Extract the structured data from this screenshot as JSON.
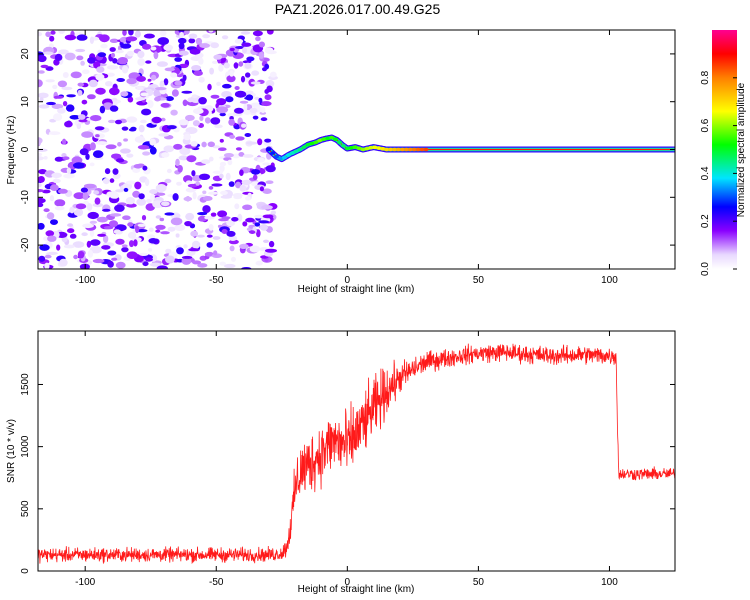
{
  "title": "PAZ1.2026.017.00.49.G25",
  "colors": {
    "snr_line": "#ff1a1a",
    "frame": "#000000",
    "background": "#ffffff"
  },
  "chart_data": [
    {
      "type": "heatmap",
      "name": "spectrogram",
      "xlabel": "Height of straight line (km)",
      "ylabel": "Frequency (Hz)",
      "xlim": [
        -118,
        125
      ],
      "ylim": [
        -25,
        25
      ],
      "x_ticks": [
        -100,
        -50,
        0,
        50,
        100
      ],
      "y_ticks": [
        -20,
        -10,
        0,
        10,
        20
      ],
      "noise_region_x": [
        -118,
        -28
      ],
      "signal_track": {
        "x": [
          -30,
          -27,
          -25,
          -22,
          -18,
          -15,
          -12,
          -10,
          -8,
          -6,
          -4,
          -2,
          0,
          3,
          6,
          10,
          15,
          20,
          25,
          30,
          40,
          50,
          60,
          70,
          80,
          90,
          100,
          105,
          110,
          115,
          120,
          125
        ],
        "frequency": [
          0,
          -1.5,
          -2,
          -1,
          0,
          1,
          1.5,
          2,
          2.3,
          2.5,
          2,
          1,
          0.2,
          0.5,
          0,
          0.5,
          0,
          0,
          0,
          0,
          0,
          0,
          0,
          0,
          0,
          0,
          0,
          0,
          0,
          0,
          0,
          0
        ],
        "normalized_amplitude": [
          0.25,
          0.3,
          0.35,
          0.4,
          0.45,
          0.5,
          0.55,
          0.6,
          0.5,
          0.55,
          0.5,
          0.45,
          0.5,
          0.55,
          0.6,
          0.65,
          0.7,
          0.75,
          0.8,
          0.85,
          0.9,
          0.9,
          0.9,
          0.9,
          0.9,
          0.9,
          0.85,
          0.9,
          0.9,
          0.9,
          0.9,
          0.9
        ]
      }
    },
    {
      "type": "colorbar",
      "label": "Normalized spectral amplitude",
      "range": [
        0,
        1
      ],
      "ticks": [
        0.0,
        0.2,
        0.4,
        0.6,
        0.8
      ],
      "tick_labels": [
        "0.0",
        "0.2",
        "0.4",
        "0.6",
        "0.8"
      ]
    },
    {
      "type": "line",
      "name": "snr",
      "xlabel": "Height of straight line (km)",
      "ylabel": "SNR (10 * v/v)",
      "xlim": [
        -118,
        125
      ],
      "ylim": [
        0,
        1930
      ],
      "x_ticks": [
        -100,
        -50,
        0,
        50,
        100
      ],
      "y_ticks": [
        0,
        500,
        1000,
        1500
      ],
      "series": [
        {
          "name": "SNR",
          "envelope": {
            "x": [
              -118,
              -30,
              -25,
              -23,
              -21,
              -20,
              -18,
              -15,
              -10,
              -5,
              0,
              5,
              10,
              15,
              20,
              25,
              30,
              40,
              50,
              60,
              70,
              80,
              90,
              100,
              102.5,
              103.5,
              110,
              125
            ],
            "mean": [
              130,
              130,
              140,
              200,
              450,
              650,
              800,
              850,
              950,
              1050,
              1000,
              1150,
              1300,
              1450,
              1550,
              1620,
              1680,
              1720,
              1750,
              1760,
              1740,
              1730,
              1740,
              1730,
              1730,
              780,
              780,
              780
            ],
            "spread": [
              70,
              70,
              70,
              100,
              200,
              250,
              300,
              300,
              300,
              300,
              350,
              300,
              300,
              250,
              150,
              120,
              100,
              90,
              90,
              90,
              90,
              90,
              90,
              90,
              90,
              60,
              60,
              60
            ]
          }
        }
      ]
    }
  ]
}
